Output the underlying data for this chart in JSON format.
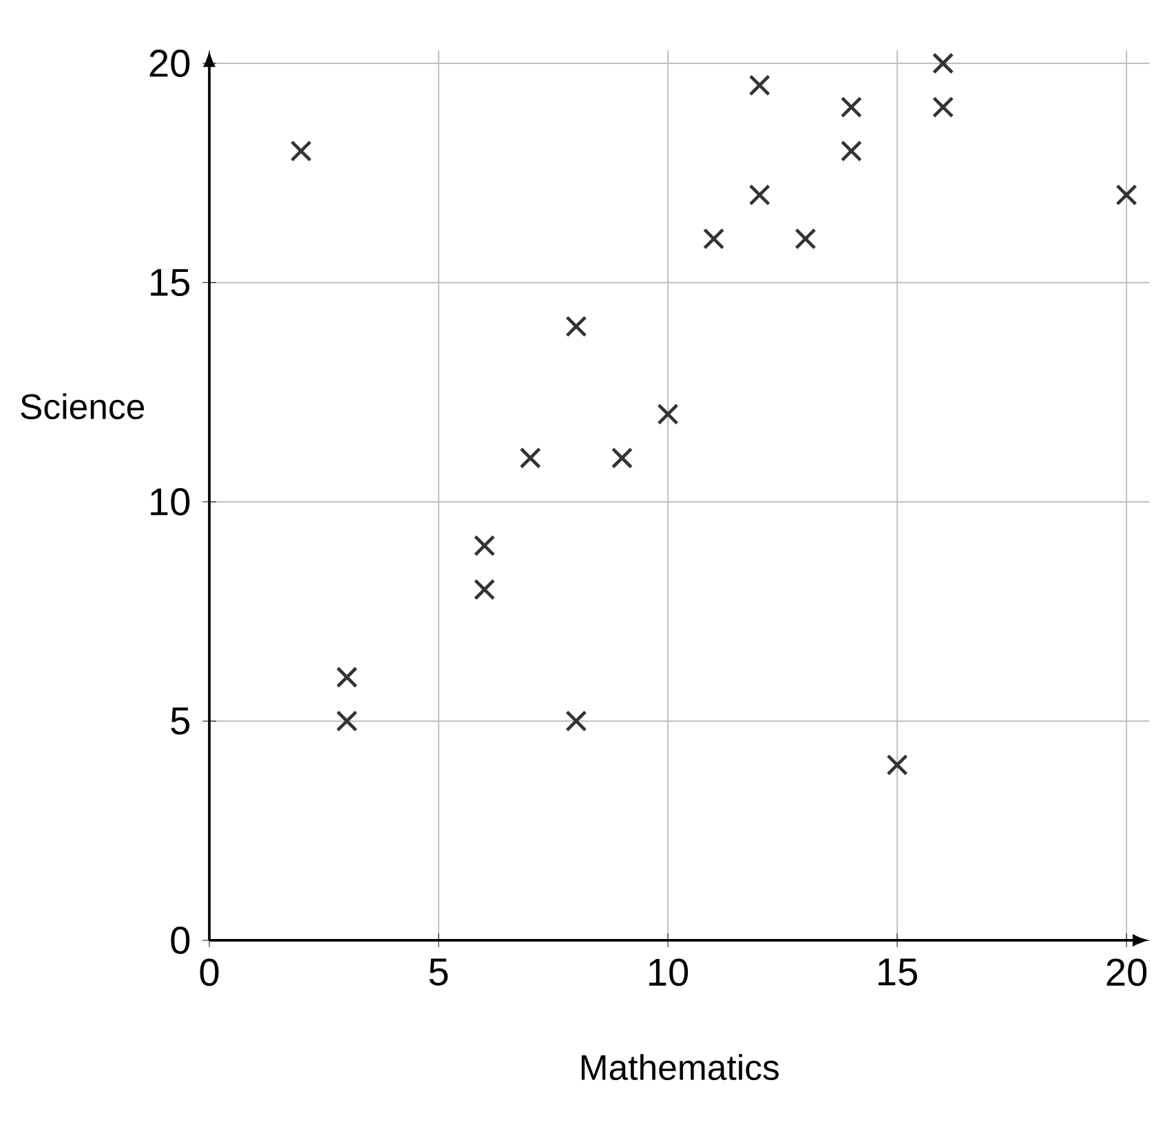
{
  "chart_data": {
    "type": "scatter",
    "xlabel": "Mathematics",
    "ylabel": "Science",
    "x": [
      2,
      3,
      3,
      6,
      6,
      7,
      8,
      8,
      9,
      10,
      11,
      12,
      12,
      13,
      14,
      14,
      15,
      16,
      16,
      20
    ],
    "values": [
      18,
      6,
      5,
      9,
      8,
      11,
      14,
      5,
      11,
      12,
      16,
      19.5,
      17,
      16,
      19,
      18,
      4,
      20,
      19,
      17
    ],
    "color": "#333333",
    "marker": "cross",
    "xlim": [
      0,
      20.5
    ],
    "ylim": [
      0,
      20.3
    ],
    "xticks": [
      0,
      5,
      10,
      15,
      20
    ],
    "yticks": [
      0,
      5,
      10,
      15,
      20
    ],
    "grid": true
  }
}
